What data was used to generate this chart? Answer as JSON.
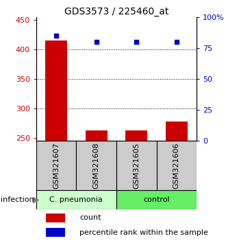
{
  "title": "GDS3573 / 225460_at",
  "samples": [
    "GSM321607",
    "GSM321608",
    "GSM321605",
    "GSM321606"
  ],
  "counts": [
    415,
    262,
    262,
    278
  ],
  "percentiles": [
    85,
    80,
    80,
    80
  ],
  "ylim_left": [
    245,
    455
  ],
  "ylim_right": [
    0,
    100
  ],
  "yticks_left": [
    250,
    300,
    350,
    400,
    450
  ],
  "yticks_right": [
    0,
    25,
    50,
    75,
    100
  ],
  "ytick_labels_right": [
    "0",
    "25",
    "50",
    "75",
    "100%"
  ],
  "bar_color": "#cc0000",
  "dot_color": "#0000cc",
  "groups": [
    {
      "label": "C. pneumonia",
      "indices": [
        0,
        1
      ],
      "color": "#ccffcc"
    },
    {
      "label": "control",
      "indices": [
        2,
        3
      ],
      "color": "#66ee66"
    }
  ],
  "infection_label": "infection",
  "legend_count_label": "count",
  "legend_pct_label": "percentile rank within the sample",
  "bar_width": 0.55,
  "sample_box_color": "#cccccc",
  "title_fontsize": 10,
  "axis_fontsize": 8,
  "label_fontsize": 8,
  "tick_fontsize": 8
}
